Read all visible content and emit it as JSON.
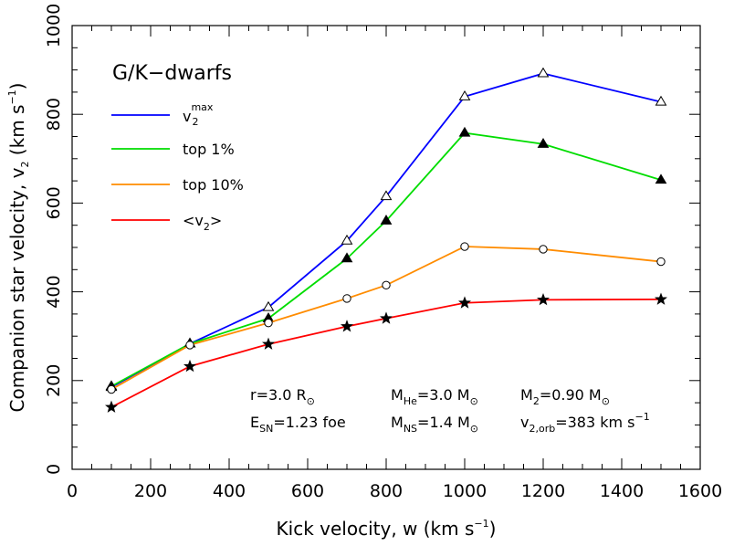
{
  "chart_data": {
    "type": "line",
    "title": "G/K−dwarfs",
    "xlabel": "Kick velocity, w   (km s−1)",
    "ylabel": "Companion star velocity, v2   (km s−1)",
    "xlim": [
      0,
      1600
    ],
    "ylim": [
      0,
      1000
    ],
    "xticks": [
      0,
      200,
      400,
      600,
      800,
      1000,
      1200,
      1400,
      1600
    ],
    "yticks": [
      0,
      200,
      400,
      600,
      800,
      1000
    ],
    "x": [
      100,
      300,
      500,
      700,
      800,
      1000,
      1200,
      1500
    ],
    "series": [
      {
        "name": "v2max",
        "color": "#0000ff",
        "marker": "open-triangle",
        "values": [
          185,
          283,
          365,
          515,
          615,
          840,
          892,
          828
        ]
      },
      {
        "name": "top 1%",
        "color": "#00dd00",
        "marker": "filled-triangle",
        "values": [
          187,
          283,
          340,
          475,
          560,
          758,
          733,
          652
        ]
      },
      {
        "name": "top 10%",
        "color": "#ff8c00",
        "marker": "open-circle",
        "values": [
          180,
          280,
          330,
          385,
          415,
          502,
          496,
          468
        ]
      },
      {
        "name": "<v2>",
        "color": "#ff0000",
        "marker": "filled-star",
        "values": [
          140,
          232,
          282,
          322,
          340,
          375,
          382,
          383
        ]
      }
    ],
    "legend_position": "top-left",
    "grid": false
  },
  "legend": {
    "v2max_base": "v",
    "v2max_sup": "max",
    "v2max_sub": "2",
    "top1": "top 1%",
    "top10": "top 10%",
    "mean_open": "<v",
    "mean_sub": "2",
    "mean_close": ">"
  },
  "axes": {
    "xlabel_main": "Kick velocity, w   (km s",
    "xlabel_exp": "−1",
    "xlabel_close": ")",
    "ylabel_main": "Companion star velocity, v",
    "ylabel_sub": "2",
    "ylabel_units": "   (km s",
    "ylabel_exp": "−1",
    "ylabel_close": ")"
  },
  "annotations": {
    "r_text": "r=3.0 R",
    "r_sub": "⊙",
    "mhe_text": "M",
    "mhe_sub": "He",
    "mhe_val": "=3.0 M",
    "mhe_unit_sub": "⊙",
    "m2_text": "M",
    "m2_sub": "2",
    "m2_val": "=0.90 M",
    "m2_unit_sub": "⊙",
    "esn_text": "E",
    "esn_sub": "SN",
    "esn_val": "=1.23 foe",
    "mns_text": "M",
    "mns_sub": "NS",
    "mns_val": "=1.4 M",
    "mns_unit_sub": "⊙",
    "v2orb_text": "v",
    "v2orb_sub": "2,orb",
    "v2orb_val": "=383 km s",
    "v2orb_exp": "−1"
  }
}
